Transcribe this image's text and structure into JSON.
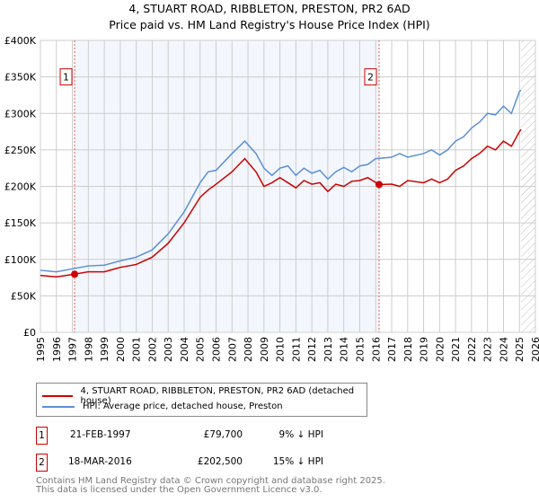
{
  "chart_data": {
    "type": "line",
    "title": "4, STUART ROAD, RIBBLETON, PRESTON, PR2 6AD",
    "subtitle": "Price paid vs. HM Land Registry's House Price Index (HPI)",
    "xlim": [
      1995,
      2026
    ],
    "ylim": [
      0,
      400000
    ],
    "x_ticks": [
      "1995",
      "1996",
      "1997",
      "1998",
      "1999",
      "2000",
      "2001",
      "2002",
      "2003",
      "2004",
      "2005",
      "2006",
      "2007",
      "2008",
      "2009",
      "2010",
      "2011",
      "2012",
      "2013",
      "2014",
      "2015",
      "2016",
      "2017",
      "2018",
      "2019",
      "2020",
      "2021",
      "2022",
      "2023",
      "2024",
      "2025",
      "2026"
    ],
    "y_ticks": [
      {
        "v": 0,
        "label": "£0"
      },
      {
        "v": 50000,
        "label": "£50K"
      },
      {
        "v": 100000,
        "label": "£100K"
      },
      {
        "v": 150000,
        "label": "£150K"
      },
      {
        "v": 200000,
        "label": "£200K"
      },
      {
        "v": 250000,
        "label": "£250K"
      },
      {
        "v": 300000,
        "label": "£300K"
      },
      {
        "v": 350000,
        "label": "£350K"
      },
      {
        "v": 400000,
        "label": "£400K"
      }
    ],
    "grid": true,
    "shaded_range": [
      1997.14,
      2016.21
    ],
    "forecast_hatch_from": 2025.1,
    "series": [
      {
        "name": "4, STUART ROAD, RIBBLETON, PRESTON, PR2 6AD (detached house)",
        "color": "#cc0000",
        "x": [
          1995,
          1996,
          1997.14,
          1998,
          1999,
          2000,
          2001,
          2002,
          2003,
          2004,
          2005,
          2005.5,
          2006,
          2007,
          2007.8,
          2008.5,
          2009,
          2009.5,
          2010,
          2010.5,
          2011,
          2011.5,
          2012,
          2012.5,
          2013,
          2013.5,
          2014,
          2014.5,
          2015,
          2015.5,
          2016.21,
          2017,
          2017.5,
          2018,
          2019,
          2019.5,
          2020,
          2020.5,
          2021,
          2021.5,
          2022,
          2022.5,
          2023,
          2023.5,
          2024,
          2024.5,
          2025,
          2025.1
        ],
        "y": [
          78000,
          76000,
          79700,
          83000,
          83000,
          89000,
          93000,
          103000,
          122000,
          150000,
          185000,
          195000,
          203000,
          220000,
          238000,
          220000,
          200000,
          205000,
          212000,
          205000,
          198000,
          208000,
          203000,
          205000,
          193000,
          203000,
          200000,
          207000,
          208000,
          212000,
          202500,
          203000,
          200000,
          208000,
          205000,
          210000,
          205000,
          210000,
          222000,
          228000,
          238000,
          245000,
          255000,
          250000,
          262000,
          255000,
          275000,
          278000
        ]
      },
      {
        "name": "HPI: Average price, detached house, Preston",
        "color": "#5b8fd4",
        "x": [
          1995,
          1996,
          1997,
          1998,
          1999,
          2000,
          2001,
          2002,
          2003,
          2004,
          2005,
          2005.5,
          2006,
          2007,
          2007.8,
          2008.5,
          2009,
          2009.5,
          2010,
          2010.5,
          2011,
          2011.5,
          2012,
          2012.5,
          2013,
          2013.5,
          2014,
          2014.5,
          2015,
          2015.5,
          2016,
          2017,
          2017.5,
          2018,
          2019,
          2019.5,
          2020,
          2020.5,
          2021,
          2021.5,
          2022,
          2022.5,
          2023,
          2023.5,
          2024,
          2024.5,
          2025,
          2025.1
        ],
        "y": [
          85000,
          83000,
          87000,
          91000,
          92000,
          98000,
          103000,
          113000,
          135000,
          165000,
          205000,
          220000,
          222000,
          245000,
          262000,
          245000,
          225000,
          215000,
          225000,
          228000,
          215000,
          225000,
          218000,
          222000,
          210000,
          220000,
          226000,
          220000,
          228000,
          230000,
          238000,
          240000,
          245000,
          240000,
          245000,
          250000,
          243000,
          250000,
          262000,
          268000,
          280000,
          288000,
          300000,
          298000,
          310000,
          300000,
          330000,
          332000
        ]
      }
    ],
    "markers": [
      {
        "label": "1",
        "x": 1997.14,
        "y": 79700
      },
      {
        "label": "2",
        "x": 2016.21,
        "y": 202500
      }
    ]
  },
  "legend": [
    "4, STUART ROAD, RIBBLETON, PRESTON, PR2 6AD (detached house)",
    "HPI: Average price, detached house, Preston"
  ],
  "sales": [
    {
      "num": "1",
      "date": "21-FEB-1997",
      "price": "£79,700",
      "hpi": "9% ↓ HPI"
    },
    {
      "num": "2",
      "date": "18-MAR-2016",
      "price": "£202,500",
      "hpi": "15% ↓ HPI"
    }
  ],
  "footer": [
    "Contains HM Land Registry data © Crown copyright and database right 2025.",
    "This data is licensed under the Open Government Licence v3.0."
  ]
}
